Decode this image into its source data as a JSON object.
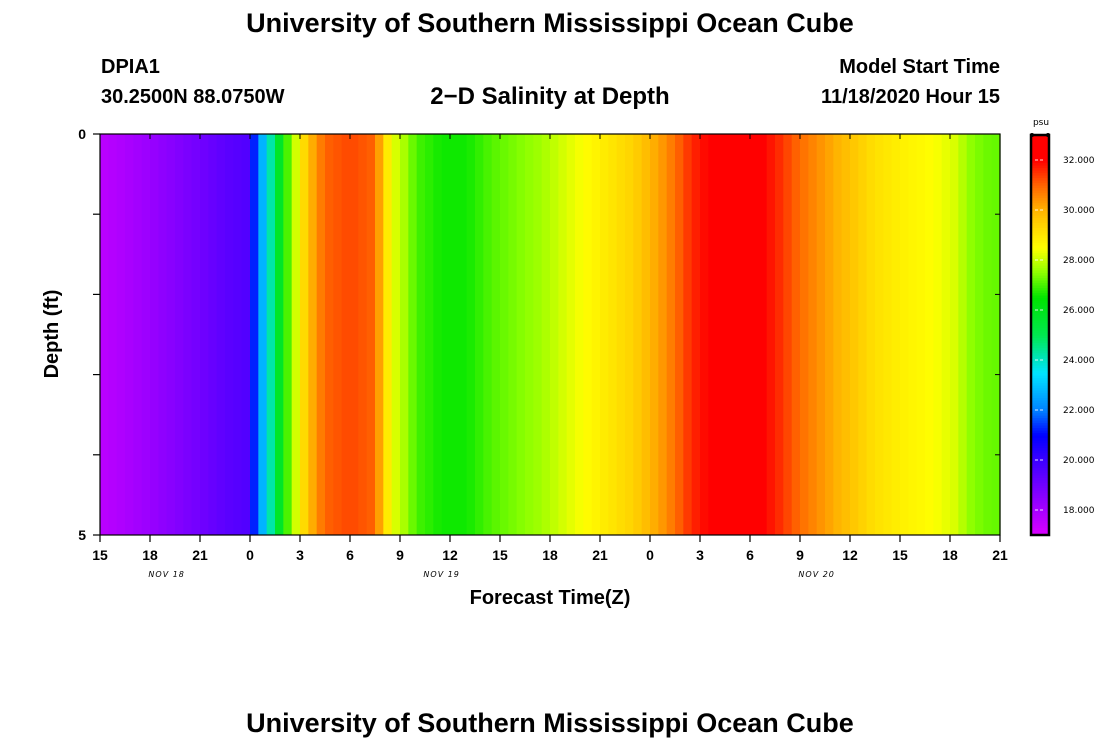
{
  "header": {
    "title_top": "University of Southern Mississippi Ocean Cube",
    "title_bottom": "University of Southern Mississippi Ocean Cube",
    "station": "DPIA1",
    "coords": "30.2500N 88.0750W",
    "chart_title": "2−D Salinity at Depth",
    "model_label": "Model Start Time",
    "model_time": "11/18/2020 Hour 15"
  },
  "chart_data": {
    "type": "heatmap",
    "title": "2−D Salinity at Depth",
    "xlabel": "Forecast Time(Z)",
    "ylabel": "Depth (ft)",
    "x_start_hour": 15,
    "x_end_hour": 69,
    "y_range": [
      0,
      5
    ],
    "y_tick_labels": [
      {
        "value": 0,
        "label": "0"
      },
      {
        "value": 5,
        "label": "5"
      }
    ],
    "x_tick_labels": [
      "15",
      "18",
      "21",
      "0",
      "3",
      "6",
      "9",
      "12",
      "15",
      "18",
      "21",
      "0",
      "3",
      "6",
      "9",
      "12",
      "15",
      "18",
      "21"
    ],
    "date_labels": [
      {
        "hour": 19,
        "label": "NOV 18"
      },
      {
        "hour": 35.5,
        "label": "NOV 19"
      },
      {
        "hour": 58,
        "label": "NOV 20"
      }
    ],
    "colorbar": {
      "unit": "psu",
      "range": [
        17,
        33
      ],
      "ticks": [
        {
          "value": 18,
          "label": "18.000"
        },
        {
          "value": 20,
          "label": "20.000"
        },
        {
          "value": 22,
          "label": "22.000"
        },
        {
          "value": 24,
          "label": "24.000"
        },
        {
          "value": 26,
          "label": "26.000"
        },
        {
          "value": 28,
          "label": "28.000"
        },
        {
          "value": 30,
          "label": "30.000"
        },
        {
          "value": 32,
          "label": "32.000"
        }
      ]
    },
    "salinity_profile": [
      {
        "hour": 15,
        "value": 17.6
      },
      {
        "hour": 17,
        "value": 18.0
      },
      {
        "hour": 19,
        "value": 18.5
      },
      {
        "hour": 21,
        "value": 19.0
      },
      {
        "hour": 22.5,
        "value": 19.4
      },
      {
        "hour": 23.8,
        "value": 19.6
      },
      {
        "hour": 24,
        "value": 20.5
      },
      {
        "hour": 24.5,
        "value": 22.0
      },
      {
        "hour": 25,
        "value": 23.5
      },
      {
        "hour": 25.5,
        "value": 25.0
      },
      {
        "hour": 26,
        "value": 26.5
      },
      {
        "hour": 26.7,
        "value": 28.0
      },
      {
        "hour": 27.5,
        "value": 29.8
      },
      {
        "hour": 28.5,
        "value": 31.0
      },
      {
        "hour": 30,
        "value": 31.3
      },
      {
        "hour": 31.5,
        "value": 31.0
      },
      {
        "hour": 32,
        "value": 29.5
      },
      {
        "hour": 32.5,
        "value": 28.3
      },
      {
        "hour": 33,
        "value": 28.0
      },
      {
        "hour": 34,
        "value": 27.0
      },
      {
        "hour": 35.5,
        "value": 26.6
      },
      {
        "hour": 37,
        "value": 26.6
      },
      {
        "hour": 38.5,
        "value": 27.1
      },
      {
        "hour": 40,
        "value": 27.4
      },
      {
        "hour": 41.5,
        "value": 27.7
      },
      {
        "hour": 43,
        "value": 28.2
      },
      {
        "hour": 45,
        "value": 28.8
      },
      {
        "hour": 47,
        "value": 29.4
      },
      {
        "hour": 49,
        "value": 30.5
      },
      {
        "hour": 50.5,
        "value": 31.6
      },
      {
        "hour": 52,
        "value": 32.2
      },
      {
        "hour": 54,
        "value": 32.3
      },
      {
        "hour": 55.5,
        "value": 31.7
      },
      {
        "hour": 57,
        "value": 30.9
      },
      {
        "hour": 58.5,
        "value": 30.3
      },
      {
        "hour": 60,
        "value": 29.7
      },
      {
        "hour": 61.5,
        "value": 29.1
      },
      {
        "hour": 63,
        "value": 28.8
      },
      {
        "hour": 65,
        "value": 28.5
      },
      {
        "hour": 66.5,
        "value": 28.1
      },
      {
        "hour": 67,
        "value": 27.6
      },
      {
        "hour": 68,
        "value": 27.3
      },
      {
        "hour": 69,
        "value": 27.2
      }
    ]
  }
}
